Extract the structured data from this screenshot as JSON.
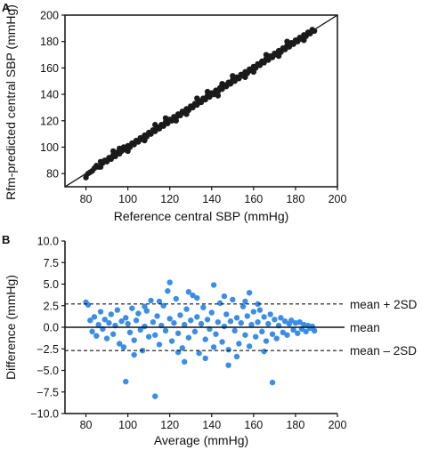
{
  "chart_data": [
    {
      "panel": "A",
      "type": "scatter",
      "xlabel": "Reference central SBP (mmHg)",
      "ylabel": "Rfm-predicted central SBP (mmHg)",
      "xlim": [
        70,
        200
      ],
      "ylim": [
        70,
        200
      ],
      "xticks": [
        "80",
        "100",
        "120",
        "140",
        "160",
        "180",
        "200"
      ],
      "yticks": [
        "80",
        "100",
        "120",
        "140",
        "160",
        "180",
        "200"
      ],
      "identity_line": true,
      "marker_color": "#1a1a1a",
      "points": [
        [
          80,
          77
        ],
        [
          81,
          80
        ],
        [
          82,
          81
        ],
        [
          83,
          82
        ],
        [
          84,
          84
        ],
        [
          85,
          86
        ],
        [
          86,
          85
        ],
        [
          87,
          89
        ],
        [
          88,
          88
        ],
        [
          89,
          90
        ],
        [
          90,
          89
        ],
        [
          91,
          92
        ],
        [
          92,
          91
        ],
        [
          93,
          94
        ],
        [
          94,
          93
        ],
        [
          95,
          96
        ],
        [
          96,
          95
        ],
        [
          97,
          97
        ],
        [
          98,
          100
        ],
        [
          99,
          98
        ],
        [
          100,
          101
        ],
        [
          101,
          100
        ],
        [
          102,
          103
        ],
        [
          103,
          102
        ],
        [
          104,
          105
        ],
        [
          105,
          104
        ],
        [
          106,
          107
        ],
        [
          107,
          106
        ],
        [
          108,
          109
        ],
        [
          109,
          108
        ],
        [
          110,
          111
        ],
        [
          111,
          110
        ],
        [
          112,
          113
        ],
        [
          113,
          112
        ],
        [
          114,
          115
        ],
        [
          115,
          114
        ],
        [
          116,
          117
        ],
        [
          117,
          116
        ],
        [
          118,
          119
        ],
        [
          119,
          118
        ],
        [
          120,
          121
        ],
        [
          121,
          120
        ],
        [
          122,
          123
        ],
        [
          123,
          122
        ],
        [
          124,
          125
        ],
        [
          125,
          124
        ],
        [
          126,
          127
        ],
        [
          127,
          126
        ],
        [
          128,
          129
        ],
        [
          129,
          128
        ],
        [
          130,
          131
        ],
        [
          131,
          130
        ],
        [
          132,
          133
        ],
        [
          133,
          132
        ],
        [
          134,
          135
        ],
        [
          135,
          134
        ],
        [
          136,
          137
        ],
        [
          137,
          136
        ],
        [
          138,
          139
        ],
        [
          139,
          138
        ],
        [
          140,
          141
        ],
        [
          141,
          140
        ],
        [
          142,
          143
        ],
        [
          143,
          142
        ],
        [
          144,
          145
        ],
        [
          145,
          144
        ],
        [
          146,
          147
        ],
        [
          147,
          146
        ],
        [
          148,
          149
        ],
        [
          149,
          148
        ],
        [
          150,
          151
        ],
        [
          151,
          150
        ],
        [
          152,
          153
        ],
        [
          153,
          152
        ],
        [
          154,
          155
        ],
        [
          155,
          154
        ],
        [
          156,
          157
        ],
        [
          157,
          156
        ],
        [
          158,
          159
        ],
        [
          159,
          158
        ],
        [
          160,
          161
        ],
        [
          161,
          160
        ],
        [
          162,
          163
        ],
        [
          163,
          162
        ],
        [
          164,
          165
        ],
        [
          165,
          164
        ],
        [
          166,
          167
        ],
        [
          167,
          166
        ],
        [
          168,
          169
        ],
        [
          169,
          168
        ],
        [
          170,
          171
        ],
        [
          171,
          170
        ],
        [
          172,
          173
        ],
        [
          173,
          172
        ],
        [
          174,
          175
        ],
        [
          175,
          174
        ],
        [
          176,
          177
        ],
        [
          177,
          176
        ],
        [
          178,
          179
        ],
        [
          179,
          178
        ],
        [
          180,
          181
        ],
        [
          181,
          180
        ],
        [
          182,
          183
        ],
        [
          183,
          182
        ],
        [
          184,
          185
        ],
        [
          185,
          184
        ],
        [
          186,
          187
        ],
        [
          187,
          186
        ],
        [
          188,
          189
        ],
        [
          189,
          188
        ],
        [
          93,
          97
        ],
        [
          108,
          105
        ],
        [
          118,
          122
        ],
        [
          128,
          125
        ],
        [
          138,
          142
        ],
        [
          143,
          139
        ],
        [
          150,
          154
        ],
        [
          156,
          153
        ],
        [
          166,
          170
        ],
        [
          172,
          169
        ],
        [
          100,
          97
        ],
        [
          113,
          117
        ],
        [
          123,
          120
        ],
        [
          133,
          137
        ],
        [
          145,
          148
        ],
        [
          160,
          157
        ],
        [
          176,
          180
        ],
        [
          184,
          181
        ],
        [
          87,
          85
        ],
        [
          96,
          99
        ]
      ]
    },
    {
      "panel": "B",
      "type": "scatter",
      "xlabel": "Average (mmHg)",
      "ylabel": "Difference (mmHg)",
      "xlim": [
        70,
        200
      ],
      "ylim": [
        -10,
        10
      ],
      "xticks": [
        "80",
        "100",
        "120",
        "140",
        "160",
        "180",
        "200"
      ],
      "yticks": [
        "10.0",
        "7.5",
        "5.0",
        "2.5",
        "0.0",
        "−2.5",
        "−5.0",
        "−7.5",
        "−10.0"
      ],
      "marker_color": "#3a8ee6",
      "mean": 0.0,
      "upper_limit": 2.7,
      "lower_limit": -2.7,
      "line_labels": [
        "mean + 2SD",
        "mean",
        "mean – 2SD"
      ],
      "points": [
        [
          80,
          2.9
        ],
        [
          81,
          2.6
        ],
        [
          82,
          0.8
        ],
        [
          83,
          -0.5
        ],
        [
          84,
          1.2
        ],
        [
          85,
          -1.0
        ],
        [
          86,
          0.3
        ],
        [
          87,
          1.8
        ],
        [
          88,
          -0.2
        ],
        [
          89,
          0.9
        ],
        [
          90,
          -1.3
        ],
        [
          91,
          0.5
        ],
        [
          92,
          1.5
        ],
        [
          93,
          -0.8
        ],
        [
          94,
          0.2
        ],
        [
          95,
          2.0
        ],
        [
          96,
          -1.9
        ],
        [
          97,
          0.7
        ],
        [
          98,
          -2.3
        ],
        [
          99,
          1.1
        ],
        [
          100,
          0.4
        ],
        [
          101,
          -0.6
        ],
        [
          102,
          2.2
        ],
        [
          103,
          -1.5
        ],
        [
          104,
          0.8
        ],
        [
          105,
          1.6
        ],
        [
          106,
          -0.3
        ],
        [
          107,
          -2.7
        ],
        [
          108,
          0.1
        ],
        [
          109,
          1.9
        ],
        [
          110,
          -1.1
        ],
        [
          111,
          3.1
        ],
        [
          112,
          0.6
        ],
        [
          113,
          -0.9
        ],
        [
          114,
          1.3
        ],
        [
          115,
          -2.0
        ],
        [
          116,
          0.2
        ],
        [
          117,
          2.5
        ],
        [
          118,
          -0.4
        ],
        [
          119,
          4.2
        ],
        [
          120,
          1.0
        ],
        [
          121,
          -1.6
        ],
        [
          122,
          0.5
        ],
        [
          123,
          3.3
        ],
        [
          124,
          -0.7
        ],
        [
          125,
          1.4
        ],
        [
          126,
          -2.4
        ],
        [
          127,
          0.3
        ],
        [
          128,
          2.1
        ],
        [
          129,
          -1.2
        ],
        [
          130,
          0.8
        ],
        [
          131,
          3.7
        ],
        [
          132,
          -0.5
        ],
        [
          133,
          1.2
        ],
        [
          134,
          -3.0
        ],
        [
          135,
          0.4
        ],
        [
          136,
          2.3
        ],
        [
          137,
          -1.4
        ],
        [
          138,
          0.9
        ],
        [
          139,
          -0.2
        ],
        [
          140,
          1.7
        ],
        [
          141,
          4.9
        ],
        [
          142,
          -0.8
        ],
        [
          143,
          0.6
        ],
        [
          144,
          2.8
        ],
        [
          145,
          -1.7
        ],
        [
          146,
          0.1
        ],
        [
          147,
          1.5
        ],
        [
          148,
          -2.6
        ],
        [
          149,
          0.7
        ],
        [
          150,
          3.2
        ],
        [
          151,
          -0.4
        ],
        [
          152,
          1.1
        ],
        [
          153,
          -1.9
        ],
        [
          154,
          0.5
        ],
        [
          155,
          2.4
        ],
        [
          156,
          -0.9
        ],
        [
          157,
          1.3
        ],
        [
          158,
          -2.2
        ],
        [
          159,
          0.3
        ],
        [
          160,
          1.8
        ],
        [
          161,
          -1.1
        ],
        [
          162,
          0.6
        ],
        [
          163,
          2.0
        ],
        [
          164,
          -0.5
        ],
        [
          165,
          1.2
        ],
        [
          166,
          -1.6
        ],
        [
          167,
          0.4
        ],
        [
          168,
          1.5
        ],
        [
          169,
          -0.8
        ],
        [
          170,
          0.9
        ],
        [
          171,
          -1.3
        ],
        [
          172,
          0.2
        ],
        [
          173,
          1.1
        ],
        [
          174,
          -0.6
        ],
        [
          175,
          0.7
        ],
        [
          176,
          -0.9
        ],
        [
          177,
          0.4
        ],
        [
          178,
          0.8
        ],
        [
          179,
          -0.3
        ],
        [
          180,
          0.5
        ],
        [
          181,
          -0.7
        ],
        [
          182,
          0.6
        ],
        [
          183,
          -0.2
        ],
        [
          184,
          0.3
        ],
        [
          185,
          -0.5
        ],
        [
          186,
          0.2
        ],
        [
          187,
          -0.1
        ],
        [
          188,
          0.1
        ],
        [
          189,
          -0.4
        ],
        [
          99,
          -6.3
        ],
        [
          113,
          -8.0
        ],
        [
          169,
          -6.4
        ],
        [
          127,
          -4.0
        ],
        [
          148,
          -4.4
        ],
        [
          137,
          -3.6
        ],
        [
          120,
          5.2
        ],
        [
          158,
          4.0
        ],
        [
          115,
          3.0
        ],
        [
          146,
          3.6
        ],
        [
          103,
          -3.2
        ],
        [
          133,
          3.4
        ],
        [
          152,
          -3.4
        ],
        [
          124,
          -2.9
        ],
        [
          162,
          2.7
        ],
        [
          108,
          2.4
        ],
        [
          141,
          -2.3
        ],
        [
          156,
          3.0
        ],
        [
          129,
          4.1
        ],
        [
          165,
          -2.8
        ]
      ]
    }
  ]
}
